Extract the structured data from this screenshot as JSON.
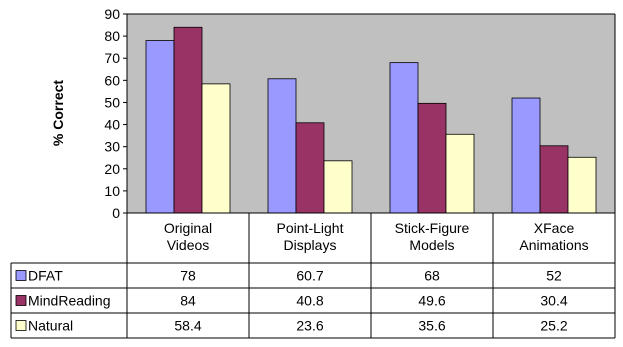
{
  "chart_data": {
    "type": "bar",
    "title": "",
    "xlabel": "",
    "ylabel": "% Correct",
    "ylim": [
      0,
      90
    ],
    "ytick_step": 10,
    "grid": false,
    "legend_placement": "data-table-left",
    "plot_background": "#c0c0c0",
    "categories": [
      [
        "Original",
        "Videos"
      ],
      [
        "Point-Light",
        "Displays"
      ],
      [
        "Stick-Figure",
        "Models"
      ],
      [
        "XFace",
        "Animations"
      ]
    ],
    "series": [
      {
        "name": "DFAT",
        "color": "#9999ff",
        "values": [
          78,
          60.7,
          68,
          52
        ],
        "labels": [
          "78",
          "60.7",
          "68",
          "52"
        ]
      },
      {
        "name": "MindReading",
        "color": "#993366",
        "values": [
          84,
          40.8,
          49.6,
          30.4
        ],
        "labels": [
          "84",
          "40.8",
          "49.6",
          "30.4"
        ]
      },
      {
        "name": "Natural",
        "color": "#ffffcc",
        "values": [
          58.4,
          23.6,
          35.6,
          25.2
        ],
        "labels": [
          "58.4",
          "23.6",
          "35.6",
          "25.2"
        ]
      }
    ]
  }
}
